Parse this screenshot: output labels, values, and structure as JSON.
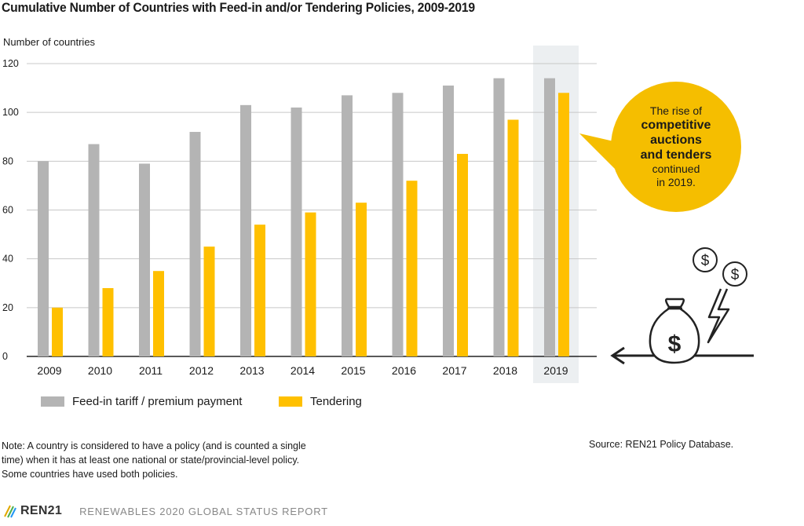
{
  "title": "Cumulative Number of Countries with Feed-in and/or Tendering Policies, 2009-2019",
  "chart_data": {
    "type": "bar",
    "ylabel": "Number of countries",
    "ylim": [
      0,
      120
    ],
    "yticks": [
      0,
      20,
      40,
      60,
      80,
      100,
      120
    ],
    "categories": [
      "2009",
      "2010",
      "2011",
      "2012",
      "2013",
      "2014",
      "2015",
      "2016",
      "2017",
      "2018",
      "2019"
    ],
    "highlight_category": "2019",
    "series": [
      {
        "name": "Feed-in tariff / premium payment",
        "color": "#b4b4b4",
        "values": [
          80,
          87,
          79,
          92,
          103,
          102,
          107,
          108,
          111,
          114,
          114
        ]
      },
      {
        "name": "Tendering",
        "color": "#ffc000",
        "values": [
          20,
          28,
          35,
          45,
          54,
          59,
          63,
          72,
          83,
          97,
          108
        ]
      }
    ]
  },
  "callout": {
    "line1": "The rise of",
    "line2": "competitive",
    "line3": "auctions",
    "line4": "and tenders",
    "line5": "continued",
    "line6": "in 2019."
  },
  "note": {
    "line1": "Note: A country is considered to have a policy (and is counted a single",
    "line2": "time) when it has at least one national or state/provincial-level policy.",
    "line3": "Some countries have used both policies."
  },
  "source": "Source: REN21 Policy Database.",
  "footer": {
    "logo": "REN21",
    "report": "RENEWABLES 2020 GLOBAL STATUS REPORT"
  },
  "icons": [
    "dollar-coin-icon",
    "money-bag-icon",
    "lightning-icon",
    "arrow-left-icon",
    "ren21-logo-icon"
  ]
}
